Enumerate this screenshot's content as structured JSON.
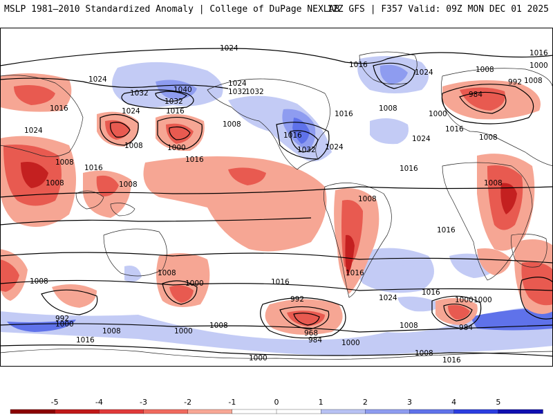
{
  "header": {
    "left_title": "MSLP 1981–2010 Standardized Anomaly | College of DuPage NEXLAB",
    "right_title": "12Z GFS | F357 Valid: 09Z MON DEC 01 2025"
  },
  "colorbar": {
    "ticks": [
      "-5",
      "-4",
      "-3",
      "-2",
      "-1",
      "0",
      "1",
      "2",
      "3",
      "4",
      "5"
    ],
    "colors": [
      "#8b0000",
      "#c01818",
      "#e03a3a",
      "#f06a5e",
      "#f8a896",
      "#ffffff",
      "#ffffff",
      "#b8c2f4",
      "#8e9cf0",
      "#5f72ea",
      "#2b3ee0",
      "#1010b0"
    ]
  },
  "anomaly_colors": {
    "neg_strong": "#c42020",
    "neg": "#e85a50",
    "neg_light": "#f6a694",
    "pos_light": "#c3cbf5",
    "pos": "#8e9cf0",
    "pos_strong": "#3a4ee0"
  },
  "isobar_labels": [
    {
      "text": "1024"
    },
    {
      "text": "1016"
    },
    {
      "text": "1024"
    },
    {
      "text": "1016"
    },
    {
      "text": "1000"
    },
    {
      "text": "1008"
    },
    {
      "text": "1024"
    },
    {
      "text": "1032"
    },
    {
      "text": "1040"
    },
    {
      "text": "1024"
    },
    {
      "text": "1032"
    },
    {
      "text": "1032"
    },
    {
      "text": "1008"
    },
    {
      "text": "992"
    },
    {
      "text": "984"
    },
    {
      "text": "1016"
    },
    {
      "text": "1032"
    },
    {
      "text": "1024"
    },
    {
      "text": "1016"
    },
    {
      "text": "1008"
    },
    {
      "text": "1000"
    },
    {
      "text": "1024"
    },
    {
      "text": "1008"
    },
    {
      "text": "1016"
    },
    {
      "text": "1024"
    },
    {
      "text": "1008"
    },
    {
      "text": "1000"
    },
    {
      "text": "1016"
    },
    {
      "text": "1016"
    },
    {
      "text": "1016"
    },
    {
      "text": "1032"
    },
    {
      "text": "1024"
    },
    {
      "text": "1008"
    },
    {
      "text": "1008"
    },
    {
      "text": "1016"
    },
    {
      "text": "1008"
    },
    {
      "text": "1008"
    },
    {
      "text": "1008"
    },
    {
      "text": "1016"
    },
    {
      "text": "1016"
    },
    {
      "text": "1008"
    },
    {
      "text": "1000"
    },
    {
      "text": "992"
    },
    {
      "text": "1000"
    },
    {
      "text": "1008"
    },
    {
      "text": "1016"
    },
    {
      "text": "992"
    },
    {
      "text": "968"
    },
    {
      "text": "984"
    },
    {
      "text": "1000"
    },
    {
      "text": "1024"
    },
    {
      "text": "1016"
    },
    {
      "text": "1016"
    },
    {
      "text": "1000"
    },
    {
      "text": "984"
    },
    {
      "text": "1008"
    },
    {
      "text": "1008"
    },
    {
      "text": "1000"
    },
    {
      "text": "1016"
    },
    {
      "text": "1008"
    },
    {
      "text": "1008"
    },
    {
      "text": "1000"
    },
    {
      "text": "1016"
    },
    {
      "text": "1000"
    },
    {
      "text": "1008"
    }
  ]
}
